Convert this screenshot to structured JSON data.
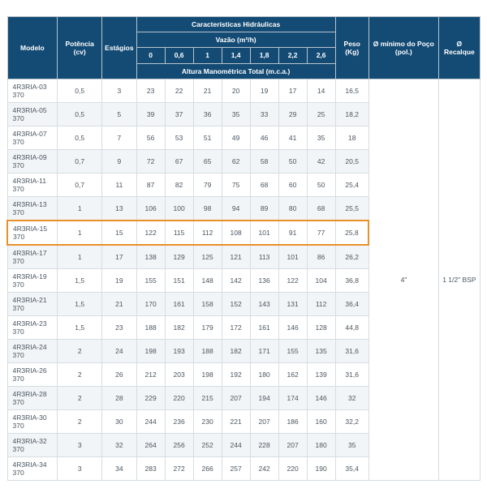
{
  "headers": {
    "modelo": "Modelo",
    "potencia": "Potência (cv)",
    "estagios": "Estágios",
    "carac": "Características Hidráulicas",
    "vazao": "Vazão (m³/h)",
    "altura": "Altura Manométrica Total (m.c.a.)",
    "peso": "Peso (Kg)",
    "diam_min": "Ø mínimo do Poço (pol.)",
    "recalque": "Ø Recalque"
  },
  "flow_cols": [
    "0",
    "0,6",
    "1",
    "1,4",
    "1,8",
    "2,2",
    "2,6"
  ],
  "rows": [
    {
      "m": "4R3RIA-03 370",
      "p": "0,5",
      "e": "3",
      "v": [
        "23",
        "22",
        "21",
        "20",
        "19",
        "17",
        "14"
      ],
      "kg": "16,5"
    },
    {
      "m": "4R3RIA-05 370",
      "p": "0,5",
      "e": "5",
      "v": [
        "39",
        "37",
        "36",
        "35",
        "33",
        "29",
        "25"
      ],
      "kg": "18,2"
    },
    {
      "m": "4R3RIA-07 370",
      "p": "0,5",
      "e": "7",
      "v": [
        "56",
        "53",
        "51",
        "49",
        "46",
        "41",
        "35"
      ],
      "kg": "18"
    },
    {
      "m": "4R3RIA-09 370",
      "p": "0,7",
      "e": "9",
      "v": [
        "72",
        "67",
        "65",
        "62",
        "58",
        "50",
        "42"
      ],
      "kg": "20,5"
    },
    {
      "m": "4R3RIA-11 370",
      "p": "0,7",
      "e": "11",
      "v": [
        "87",
        "82",
        "79",
        "75",
        "68",
        "60",
        "50"
      ],
      "kg": "25,4"
    },
    {
      "m": "4R3RIA-13 370",
      "p": "1",
      "e": "13",
      "v": [
        "106",
        "100",
        "98",
        "94",
        "89",
        "80",
        "68"
      ],
      "kg": "25,5"
    },
    {
      "m": "4R3RIA-15 370",
      "p": "1",
      "e": "15",
      "v": [
        "122",
        "115",
        "112",
        "108",
        "101",
        "91",
        "77"
      ],
      "kg": "25,8",
      "hl": true
    },
    {
      "m": "4R3RIA-17 370",
      "p": "1",
      "e": "17",
      "v": [
        "138",
        "129",
        "125",
        "121",
        "113",
        "101",
        "86"
      ],
      "kg": "26,2"
    },
    {
      "m": "4R3RIA-19 370",
      "p": "1,5",
      "e": "19",
      "v": [
        "155",
        "151",
        "148",
        "142",
        "136",
        "122",
        "104"
      ],
      "kg": "36,8"
    },
    {
      "m": "4R3RIA-21 370",
      "p": "1,5",
      "e": "21",
      "v": [
        "170",
        "161",
        "158",
        "152",
        "143",
        "131",
        "112"
      ],
      "kg": "36,4"
    },
    {
      "m": "4R3RIA-23 370",
      "p": "1,5",
      "e": "23",
      "v": [
        "188",
        "182",
        "179",
        "172",
        "161",
        "146",
        "128"
      ],
      "kg": "44,8"
    },
    {
      "m": "4R3RIA-24 370",
      "p": "2",
      "e": "24",
      "v": [
        "198",
        "193",
        "188",
        "182",
        "171",
        "155",
        "135"
      ],
      "kg": "31,6"
    },
    {
      "m": "4R3RIA-26 370",
      "p": "2",
      "e": "26",
      "v": [
        "212",
        "203",
        "198",
        "192",
        "180",
        "162",
        "139"
      ],
      "kg": "31,6"
    },
    {
      "m": "4R3RIA-28 370",
      "p": "2",
      "e": "28",
      "v": [
        "229",
        "220",
        "215",
        "207",
        "194",
        "174",
        "146"
      ],
      "kg": "32"
    },
    {
      "m": "4R3RIA-30 370",
      "p": "2",
      "e": "30",
      "v": [
        "244",
        "236",
        "230",
        "221",
        "207",
        "186",
        "160"
      ],
      "kg": "32,2"
    },
    {
      "m": "4R3RIA-32 370",
      "p": "3",
      "e": "32",
      "v": [
        "264",
        "256",
        "252",
        "244",
        "228",
        "207",
        "180"
      ],
      "kg": "35"
    },
    {
      "m": "4R3RIA-34 370",
      "p": "3",
      "e": "34",
      "v": [
        "283",
        "272",
        "266",
        "257",
        "242",
        "220",
        "190"
      ],
      "kg": "35,4"
    }
  ],
  "diam_min_val": "4\"",
  "recalque_val": "1 1/2\" BSP",
  "colors": {
    "header_bg": "#144b75",
    "header_fg": "#ffffff",
    "border": "#d5dde3",
    "stripe": "#f2f5f7",
    "highlight": "#e8912b",
    "text": "#4a5560"
  }
}
